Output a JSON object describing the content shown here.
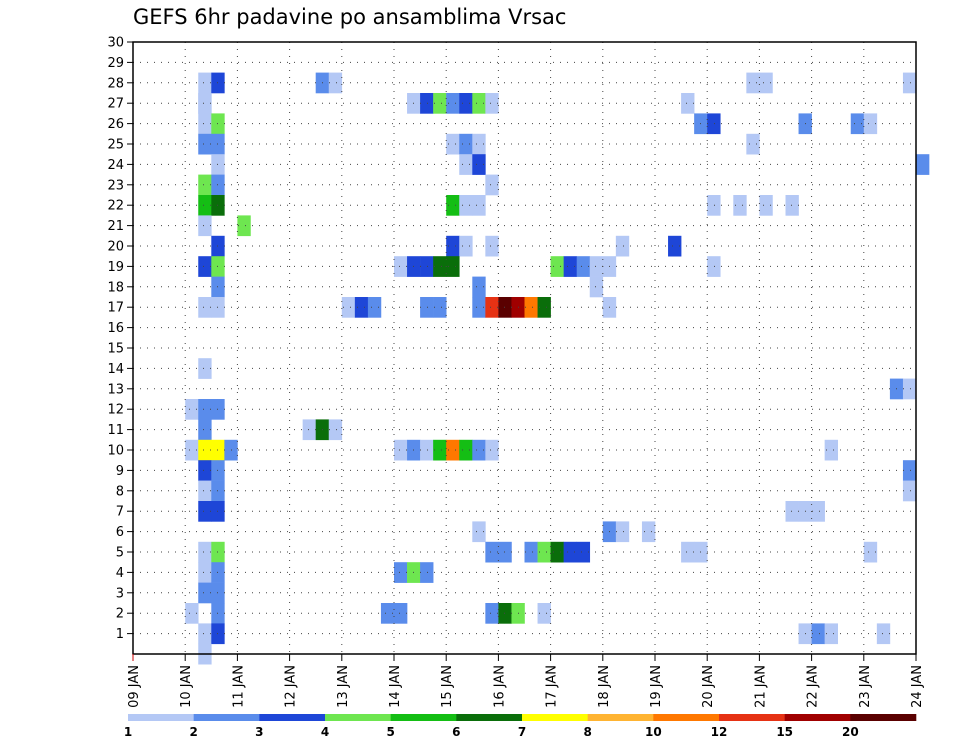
{
  "chart_data": {
    "type": "heatmap",
    "title": "GEFS 6hr padavine po ansamblima Vrsac",
    "xlabel": "",
    "ylabel": "",
    "x_tick_labels": [
      "09 JAN",
      "10 JAN",
      "11 JAN",
      "12 JAN",
      "13 JAN",
      "14 JAN",
      "15 JAN",
      "16 JAN",
      "17 JAN",
      "18 JAN",
      "19 JAN",
      "20 JAN",
      "21 JAN",
      "22 JAN",
      "23 JAN",
      "24 JAN"
    ],
    "x_range": [
      0,
      60
    ],
    "y_range": [
      0,
      30
    ],
    "y_ticks": [
      1,
      2,
      3,
      4,
      5,
      6,
      7,
      8,
      9,
      10,
      11,
      12,
      13,
      14,
      15,
      16,
      17,
      18,
      19,
      20,
      21,
      22,
      23,
      24,
      25,
      26,
      27,
      28,
      29,
      30
    ],
    "grid": true,
    "colorbar": {
      "boundaries": [
        "1",
        "2",
        "3",
        "4",
        "5",
        "6",
        "7",
        "8",
        "10",
        "12",
        "15",
        "20"
      ],
      "colors": [
        "#b4c8f5",
        "#5a8ceb",
        "#1e46d7",
        "#6ee650",
        "#14be14",
        "#0a6e0a",
        "#ffff00",
        "#ffb432",
        "#ff7800",
        "#e63214",
        "#a00000",
        "#5a0000"
      ]
    },
    "cells": [
      [
        5,
        28,
        0
      ],
      [
        5,
        27,
        0
      ],
      [
        6,
        28,
        2
      ],
      [
        14,
        28,
        1
      ],
      [
        15,
        28,
        0
      ],
      [
        47,
        28,
        0
      ],
      [
        48,
        28,
        0
      ],
      [
        59,
        28,
        0
      ],
      [
        5,
        27,
        0
      ],
      [
        21,
        27,
        0
      ],
      [
        22,
        27,
        2
      ],
      [
        23,
        27,
        3
      ],
      [
        24,
        27,
        1
      ],
      [
        25,
        27,
        2
      ],
      [
        26,
        27,
        3
      ],
      [
        27,
        27,
        0
      ],
      [
        42,
        27,
        0
      ],
      [
        5,
        26,
        0
      ],
      [
        6,
        26,
        3
      ],
      [
        43,
        26,
        1
      ],
      [
        44,
        26,
        2
      ],
      [
        51,
        26,
        1
      ],
      [
        55,
        26,
        1
      ],
      [
        56,
        26,
        0
      ],
      [
        5,
        25,
        1
      ],
      [
        6,
        25,
        1
      ],
      [
        24,
        25,
        0
      ],
      [
        25,
        25,
        1
      ],
      [
        26,
        25,
        0
      ],
      [
        47,
        25,
        0
      ],
      [
        6,
        24,
        0
      ],
      [
        25,
        24,
        0
      ],
      [
        26,
        24,
        2
      ],
      [
        60,
        24,
        1
      ],
      [
        5,
        23,
        3
      ],
      [
        6,
        23,
        1
      ],
      [
        27,
        23,
        0
      ],
      [
        5,
        22,
        4
      ],
      [
        6,
        22,
        5
      ],
      [
        24,
        22,
        4
      ],
      [
        25,
        22,
        0
      ],
      [
        26,
        22,
        0
      ],
      [
        44,
        22,
        0
      ],
      [
        46,
        22,
        0
      ],
      [
        48,
        22,
        0
      ],
      [
        50,
        22,
        0
      ],
      [
        5,
        21,
        0
      ],
      [
        8,
        21,
        3
      ],
      [
        6,
        20,
        2
      ],
      [
        24,
        20,
        2
      ],
      [
        25,
        20,
        0
      ],
      [
        27,
        20,
        0
      ],
      [
        37,
        20,
        0
      ],
      [
        41,
        20,
        2
      ],
      [
        5,
        19,
        2
      ],
      [
        6,
        19,
        3
      ],
      [
        20,
        19,
        0
      ],
      [
        21,
        19,
        2
      ],
      [
        22,
        19,
        2
      ],
      [
        23,
        19,
        5
      ],
      [
        24,
        19,
        5
      ],
      [
        32,
        19,
        3
      ],
      [
        33,
        19,
        2
      ],
      [
        34,
        19,
        1
      ],
      [
        35,
        19,
        0
      ],
      [
        36,
        19,
        0
      ],
      [
        44,
        19,
        0
      ],
      [
        6,
        18,
        1
      ],
      [
        26,
        18,
        1
      ],
      [
        35,
        18,
        0
      ],
      [
        5,
        17,
        0
      ],
      [
        6,
        17,
        0
      ],
      [
        16,
        17,
        0
      ],
      [
        17,
        17,
        2
      ],
      [
        18,
        17,
        1
      ],
      [
        22,
        17,
        1
      ],
      [
        23,
        17,
        1
      ],
      [
        26,
        17,
        1
      ],
      [
        27,
        17,
        9
      ],
      [
        28,
        17,
        11
      ],
      [
        29,
        17,
        10
      ],
      [
        30,
        17,
        8
      ],
      [
        31,
        17,
        5
      ],
      [
        36,
        17,
        0
      ],
      [
        5,
        14,
        0
      ],
      [
        58,
        13,
        1
      ],
      [
        59,
        13,
        0
      ],
      [
        4,
        12,
        0
      ],
      [
        5,
        12,
        1
      ],
      [
        6,
        12,
        1
      ],
      [
        5,
        11,
        1
      ],
      [
        13,
        11,
        0
      ],
      [
        14,
        11,
        5
      ],
      [
        15,
        11,
        0
      ],
      [
        4,
        10,
        0
      ],
      [
        5,
        10,
        6
      ],
      [
        6,
        10,
        6
      ],
      [
        7,
        10,
        1
      ],
      [
        20,
        10,
        0
      ],
      [
        21,
        10,
        1
      ],
      [
        22,
        10,
        0
      ],
      [
        23,
        10,
        4
      ],
      [
        24,
        10,
        8
      ],
      [
        25,
        10,
        4
      ],
      [
        26,
        10,
        1
      ],
      [
        27,
        10,
        0
      ],
      [
        53,
        10,
        0
      ],
      [
        5,
        9,
        2
      ],
      [
        6,
        9,
        1
      ],
      [
        59,
        9,
        1
      ],
      [
        5,
        8,
        0
      ],
      [
        6,
        8,
        1
      ],
      [
        59,
        8,
        0
      ],
      [
        5,
        7,
        2
      ],
      [
        6,
        7,
        2
      ],
      [
        50,
        7,
        0
      ],
      [
        51,
        7,
        0
      ],
      [
        52,
        7,
        0
      ],
      [
        26,
        6,
        0
      ],
      [
        36,
        6,
        1
      ],
      [
        37,
        6,
        0
      ],
      [
        39,
        6,
        0
      ],
      [
        5,
        5,
        0
      ],
      [
        6,
        5,
        3
      ],
      [
        27,
        5,
        1
      ],
      [
        28,
        5,
        1
      ],
      [
        30,
        5,
        1
      ],
      [
        31,
        5,
        3
      ],
      [
        32,
        5,
        5
      ],
      [
        33,
        5,
        2
      ],
      [
        34,
        5,
        2
      ],
      [
        42,
        5,
        0
      ],
      [
        43,
        5,
        0
      ],
      [
        56,
        5,
        0
      ],
      [
        5,
        4,
        0
      ],
      [
        6,
        4,
        1
      ],
      [
        20,
        4,
        1
      ],
      [
        21,
        4,
        3
      ],
      [
        22,
        4,
        1
      ],
      [
        5,
        3,
        1
      ],
      [
        6,
        3,
        1
      ],
      [
        4,
        2,
        0
      ],
      [
        6,
        2,
        1
      ],
      [
        19,
        2,
        1
      ],
      [
        20,
        2,
        1
      ],
      [
        27,
        2,
        1
      ],
      [
        28,
        2,
        5
      ],
      [
        29,
        2,
        3
      ],
      [
        31,
        2,
        0
      ],
      [
        5,
        1,
        0
      ],
      [
        6,
        1,
        2
      ],
      [
        51,
        1,
        0
      ],
      [
        52,
        1,
        1
      ],
      [
        53,
        1,
        0
      ],
      [
        57,
        1,
        0
      ],
      [
        5,
        0,
        0
      ]
    ]
  }
}
